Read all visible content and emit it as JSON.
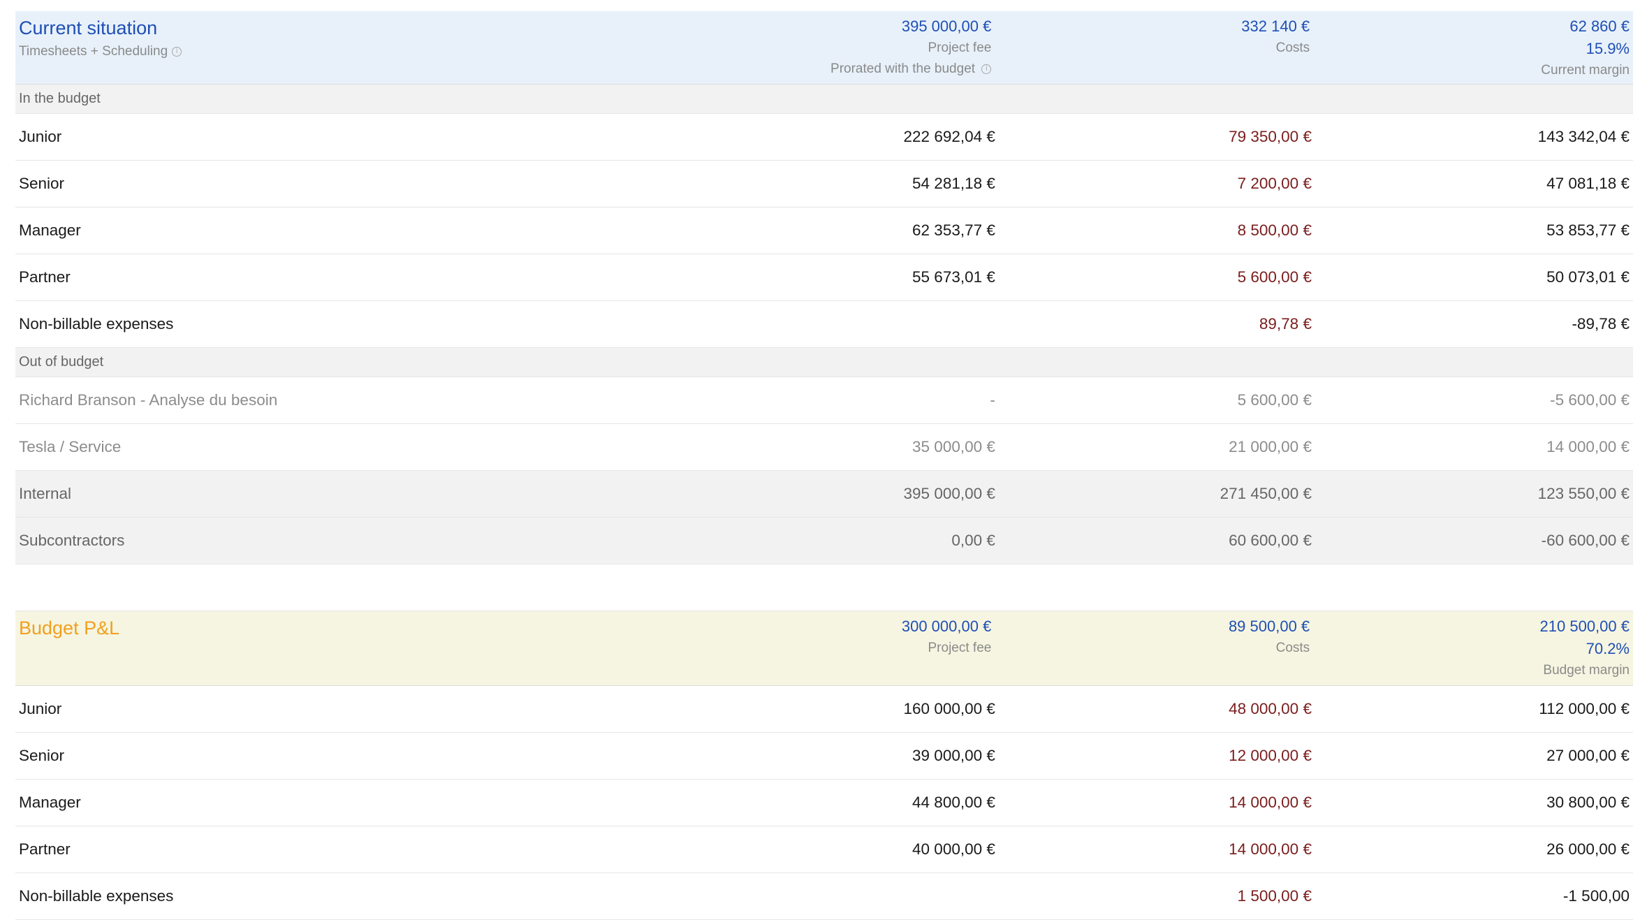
{
  "current": {
    "title": "Current situation",
    "subtitle": "Timesheets + Scheduling",
    "fee_value": "395 000,00 €",
    "fee_caption": "Project fee",
    "fee_note": "Prorated with the budget",
    "cost_value": "332 140 €",
    "cost_caption": "Costs",
    "margin_value": "62 860 €",
    "margin_pct": "15.9%",
    "margin_caption": "Current margin",
    "in_budget_label": "In the budget",
    "in_budget_rows": [
      {
        "label": "Junior",
        "fee": "222 692,04 €",
        "cost": "79 350,00 €",
        "margin": "143 342,04 €"
      },
      {
        "label": "Senior",
        "fee": "54 281,18 €",
        "cost": "7 200,00 €",
        "margin": "47 081,18 €"
      },
      {
        "label": "Manager",
        "fee": "62 353,77 €",
        "cost": "8 500,00 €",
        "margin": "53 853,77 €"
      },
      {
        "label": "Partner",
        "fee": "55 673,01 €",
        "cost": "5 600,00 €",
        "margin": "50 073,01 €"
      },
      {
        "label": "Non-billable expenses",
        "fee": "",
        "cost": "89,78 €",
        "margin": "-89,78 €"
      }
    ],
    "out_budget_label": "Out of budget",
    "out_budget_rows": [
      {
        "label": "Richard Branson - Analyse du besoin",
        "fee": "-",
        "cost": "5 600,00 €",
        "margin": "-5 600,00 €"
      },
      {
        "label": "Tesla / Service",
        "fee": "35 000,00 €",
        "cost": "21 000,00 €",
        "margin": "14 000,00 €"
      }
    ],
    "summary_rows": [
      {
        "label": "Internal",
        "fee": "395 000,00 €",
        "cost": "271 450,00 €",
        "margin": "123 550,00 €"
      },
      {
        "label": "Subcontractors",
        "fee": "0,00 €",
        "cost": "60 600,00 €",
        "margin": "-60 600,00 €"
      }
    ]
  },
  "budget": {
    "title": "Budget P&L",
    "fee_value": "300 000,00 €",
    "fee_caption": "Project fee",
    "cost_value": "89 500,00 €",
    "cost_caption": "Costs",
    "margin_value": "210 500,00 €",
    "margin_pct": "70.2%",
    "margin_caption": "Budget margin",
    "rows": [
      {
        "label": "Junior",
        "fee": "160 000,00 €",
        "cost": "48 000,00 €",
        "margin": "112 000,00 €"
      },
      {
        "label": "Senior",
        "fee": "39 000,00 €",
        "cost": "12 000,00 €",
        "margin": "27 000,00 €"
      },
      {
        "label": "Manager",
        "fee": "44 800,00 €",
        "cost": "14 000,00 €",
        "margin": "30 800,00 €"
      },
      {
        "label": "Partner",
        "fee": "40 000,00 €",
        "cost": "14 000,00 €",
        "margin": "26 000,00 €"
      },
      {
        "label": "Non-billable expenses",
        "fee": "",
        "cost": "1 500,00 €",
        "margin": "-1 500,00"
      }
    ]
  }
}
